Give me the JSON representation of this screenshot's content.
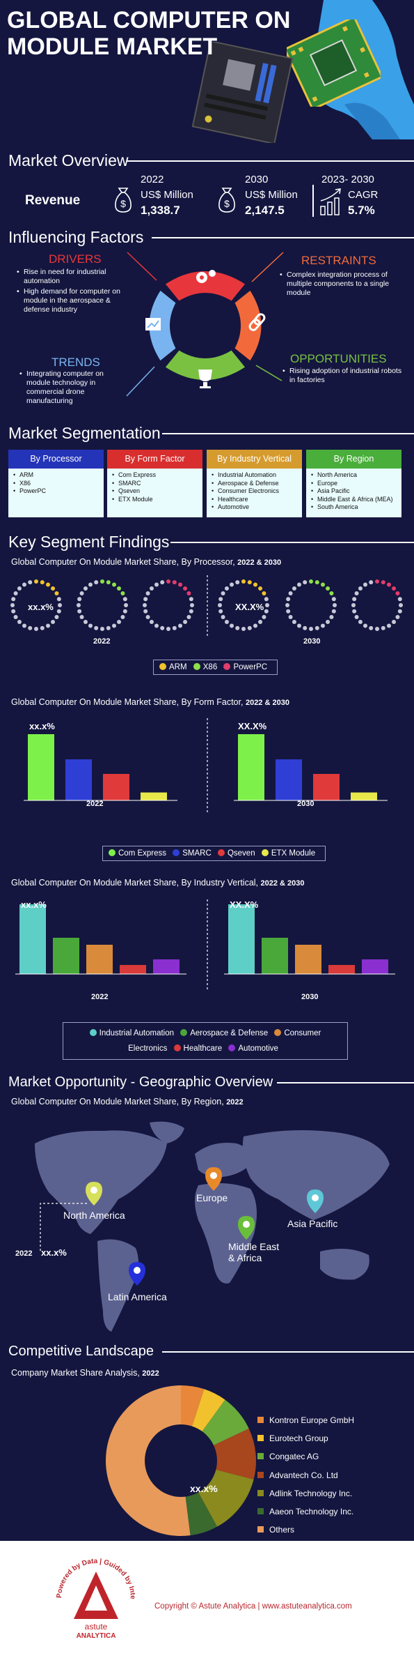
{
  "header": {
    "title_line1": "GLOBAL COMPUTER ON",
    "title_line2": "MODULE MARKET"
  },
  "overview": {
    "title": "Market Overview",
    "revenue_label": "Revenue",
    "y2022": {
      "year": "2022",
      "unit": "US$ Million",
      "value": "1,338.7"
    },
    "y2030": {
      "year": "2030",
      "unit": "US$ Million",
      "value": "2,147.5"
    },
    "cagr": {
      "period": "2023- 2030",
      "label": "CAGR",
      "value": "5.7%"
    }
  },
  "factors": {
    "title": "Influencing Factors",
    "drivers": {
      "title": "DRIVERS",
      "items": [
        "Rise in need for industrial automation",
        "High demand for computer on module in the aerospace & defense industry"
      ]
    },
    "restraints": {
      "title": "RESTRAINTS",
      "items": [
        "Complex integration process of multiple components to a single module"
      ]
    },
    "trends": {
      "title": "TRENDS",
      "items": [
        "Integrating computer on module technology in commercial drone manufacturing"
      ]
    },
    "opportunities": {
      "title": "OPPORTUNITIES",
      "items": [
        "Rising adoption of industrial robots in factories"
      ]
    },
    "colors": {
      "drivers": "#e8373c",
      "restraints": "#f26a3b",
      "trends": "#7ab4f0",
      "opportunities": "#7ac142"
    }
  },
  "segmentation": {
    "title": "Market Segmentation",
    "columns": [
      {
        "head": "By Processor",
        "color": "#2434b8",
        "items": [
          "ARM",
          "X86",
          "PowerPC"
        ]
      },
      {
        "head": "By Form Factor",
        "color": "#d92e2e",
        "items": [
          "Com Express",
          "SMARC",
          "Qseven",
          "ETX Module"
        ]
      },
      {
        "head": "By Industry Vertical",
        "color": "#d69b2e",
        "items": [
          "Industrial Automation",
          "Aerospace & Defense",
          "Consumer Electronics",
          "Healthcare",
          "Automotive"
        ]
      },
      {
        "head": "By Region",
        "color": "#4aae3a",
        "items": [
          "North America",
          "Europe",
          "Asia Pacific",
          "Middle East & Africa (MEA)",
          "South America"
        ]
      }
    ]
  },
  "findings": {
    "title": "Key Segment Findings",
    "processor": {
      "subtitle": "Global Computer On Module Market Share, By Processor,",
      "years_label": "2022 & 2030",
      "year_a": "2022",
      "year_b": "2030",
      "label_a": "xx.x%",
      "label_b": "XX.X%",
      "legend": [
        {
          "name": "ARM",
          "color": "#f2c12e"
        },
        {
          "name": "X86",
          "color": "#8ee04a"
        },
        {
          "name": "PowerPC",
          "color": "#e23d6b"
        }
      ]
    },
    "form_factor": {
      "subtitle": "Global Computer On Module Market Share, By Form Factor,",
      "years_label": "2022 & 2030",
      "year_a": "2022",
      "year_b": "2030",
      "label_a": "xx.x%",
      "label_b": "XX.X%",
      "legend": [
        {
          "name": "Com Express",
          "color": "#7ef04a"
        },
        {
          "name": "SMARC",
          "color": "#2f3fd6"
        },
        {
          "name": "Qseven",
          "color": "#e03a3a"
        },
        {
          "name": "ETX Module",
          "color": "#e8e84a"
        }
      ]
    },
    "industry": {
      "subtitle": "Global Computer On Module Market Share, By Industry Vertical,",
      "years_label": "2022 & 2030",
      "year_a": "2022",
      "year_b": "2030",
      "label_a": "xx.x%",
      "label_b": "XX.X%",
      "legend": [
        {
          "name": "Industrial Automation",
          "color": "#5ecfc7"
        },
        {
          "name": "Aerospace & Defense",
          "color": "#4aa83a"
        },
        {
          "name": "Consumer Electronics",
          "color": "#d98a3a"
        },
        {
          "name": "Healthcare",
          "color": "#d93a3a"
        },
        {
          "name": "Automotive",
          "color": "#8a2fd0"
        }
      ]
    }
  },
  "geo": {
    "title": "Market Opportunity - Geographic Overview",
    "subtitle": "Global Computer On Module Market Share, By Region,",
    "year": "2022",
    "callout_year": "2022",
    "callout_value": "xx.x%",
    "regions": [
      {
        "name": "North America",
        "color": "#d7e05a"
      },
      {
        "name": "Europe",
        "color": "#e8892a"
      },
      {
        "name": "Asia Pacific",
        "color": "#5ec8d8"
      },
      {
        "name": "Middle East\n& Africa",
        "line1": "Middle East",
        "line2": "& Africa",
        "color": "#6abf3a"
      },
      {
        "name": "Latin America",
        "color": "#2430d8"
      }
    ]
  },
  "competitive": {
    "title": "Competitive Landscape",
    "subtitle": "Company Market Share Analysis,",
    "year": "2022",
    "donut_label": "xx.x%",
    "companies": [
      {
        "name": "Kontron Europe GmbH",
        "color": "#e8873a"
      },
      {
        "name": "Eurotech Group",
        "color": "#f2c12e"
      },
      {
        "name": "Congatec AG",
        "color": "#6aaa3a"
      },
      {
        "name": "Advantech Co. Ltd",
        "color": "#a8461e"
      },
      {
        "name": "Adlink Technology Inc.",
        "color": "#8a8a1e"
      },
      {
        "name": "Aaeon Technology Inc.",
        "color": "#3a6a2e"
      },
      {
        "name": "Others",
        "color": "#e89a5a"
      }
    ]
  },
  "footer": {
    "copyright": "Copyright © Astute Analytica  |  www.astuteanalytica.com",
    "logo_ring_text": "Powered by Data | Guided by Intelligence",
    "logo_name_1": "astute",
    "logo_name_2": "ANALYTICA"
  }
}
